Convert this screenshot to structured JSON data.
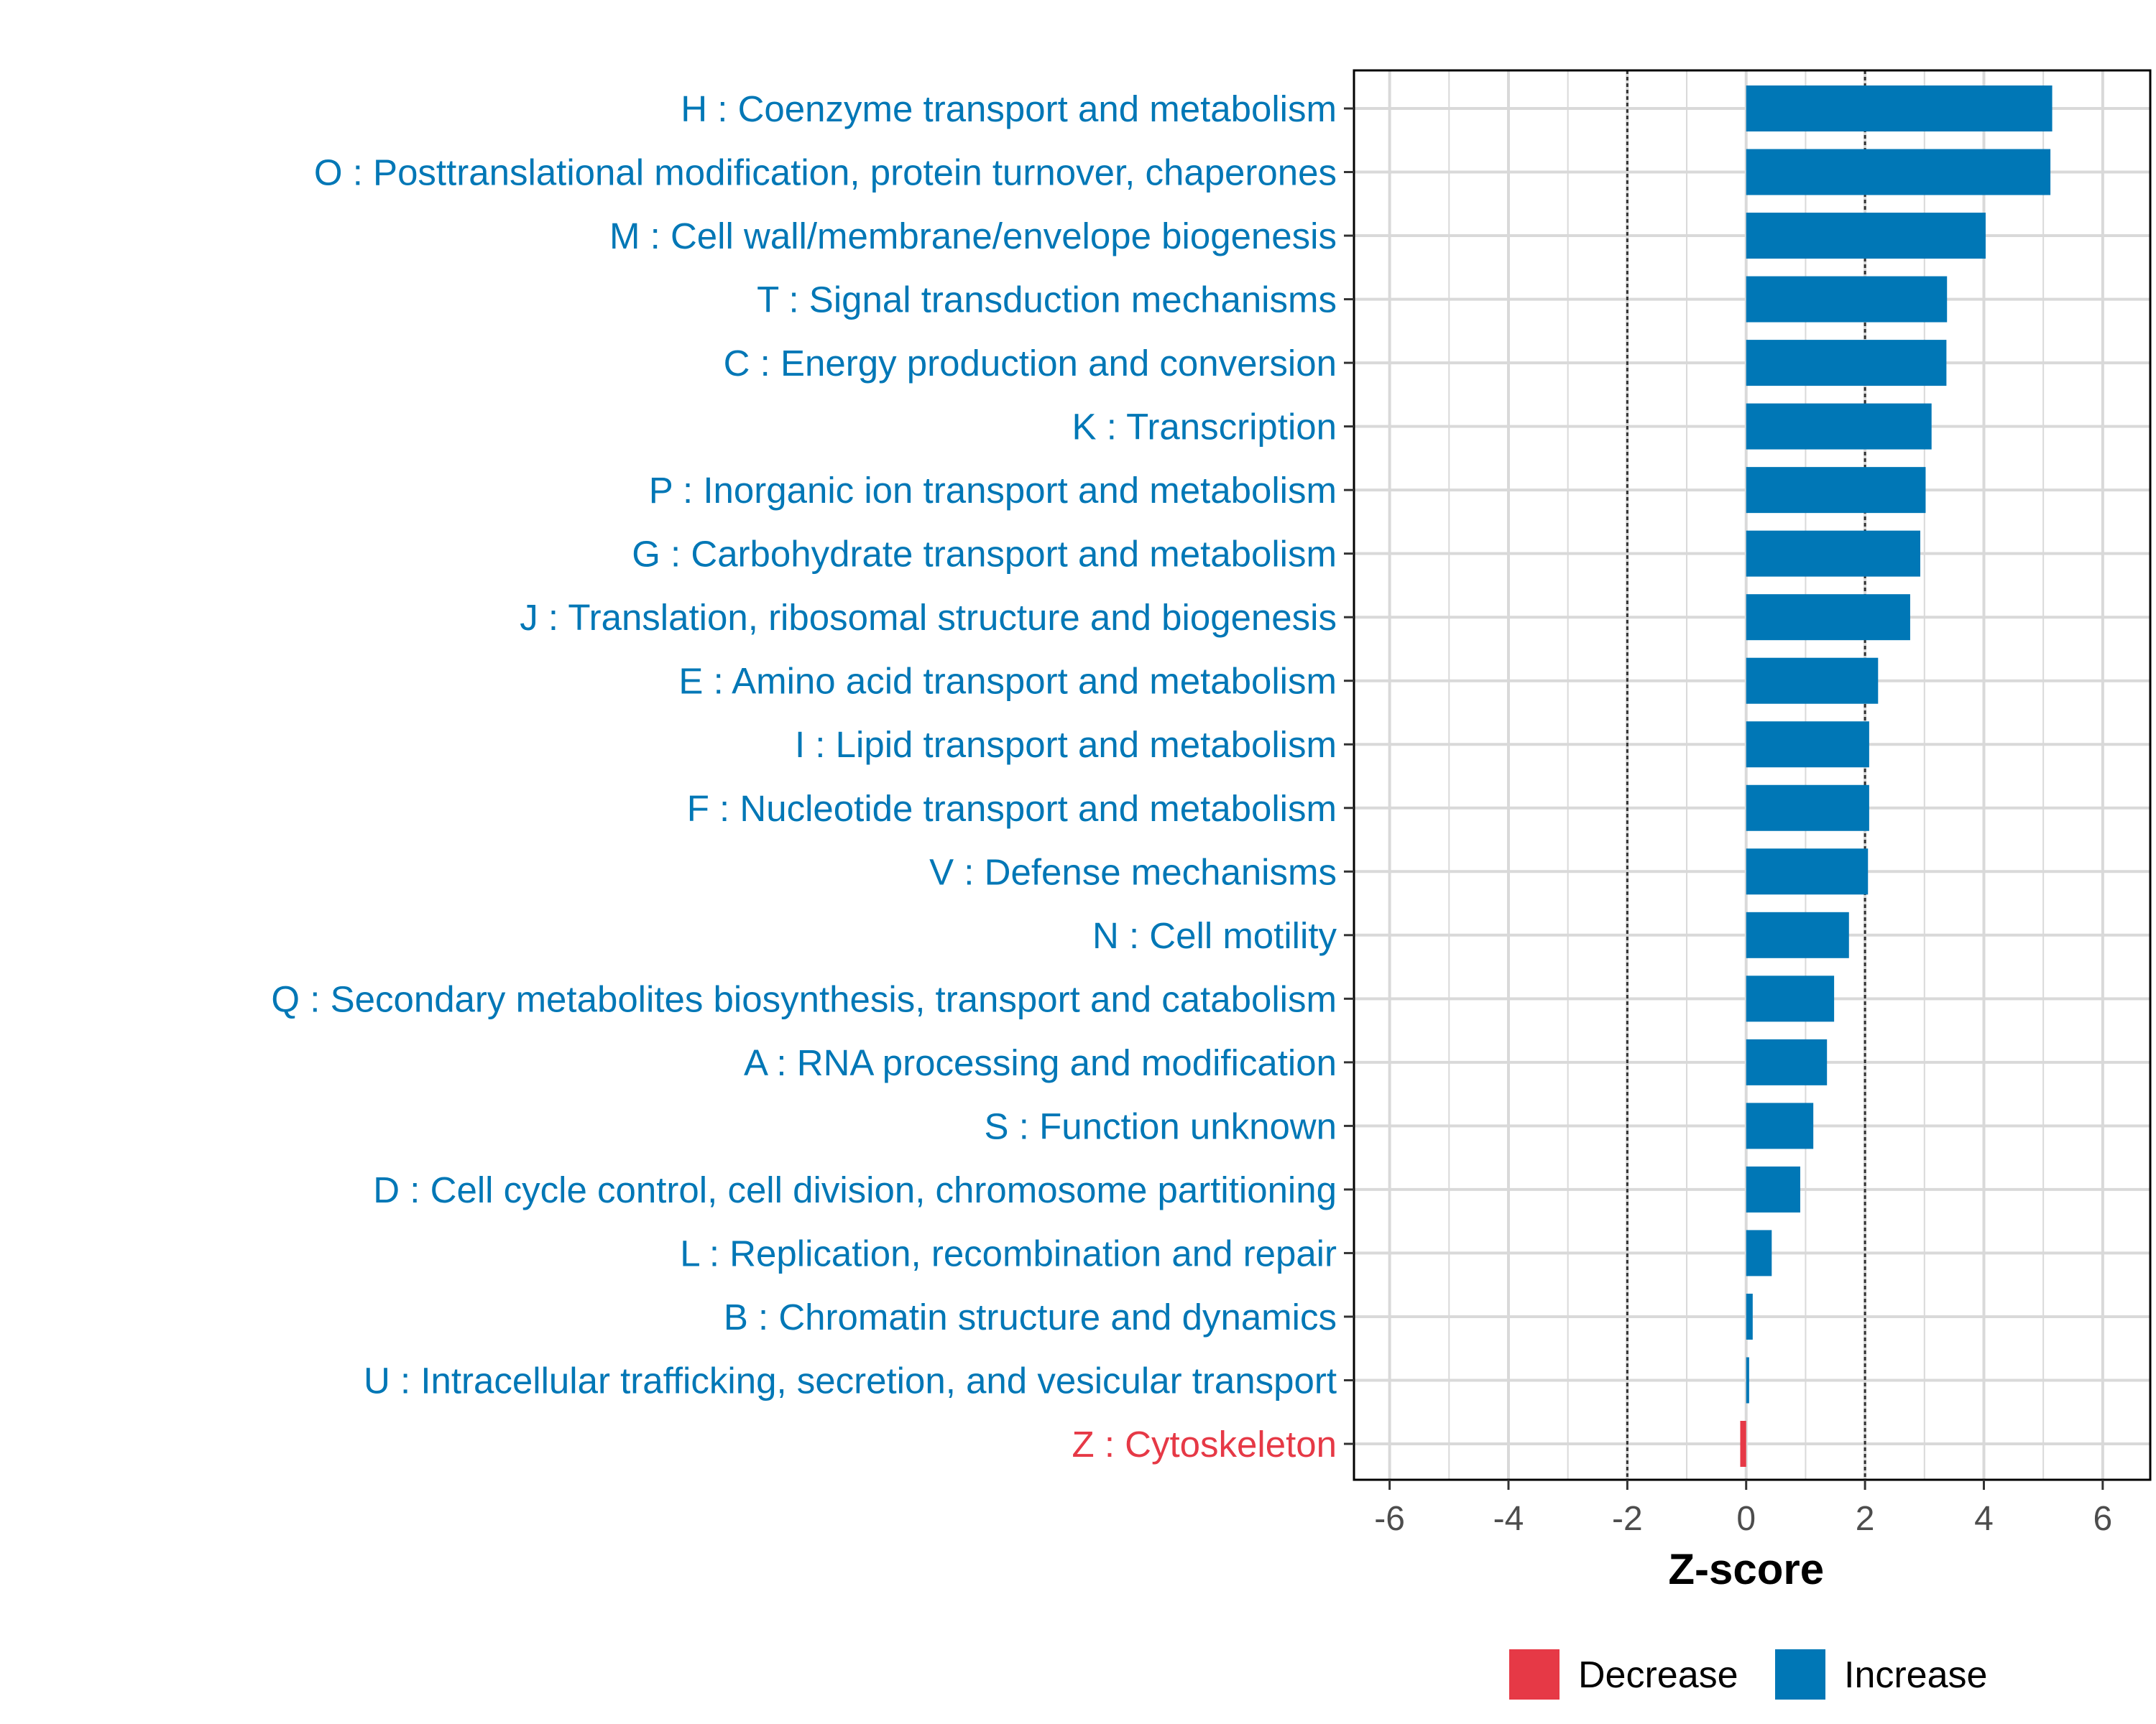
{
  "colors": {
    "increase": "#0077b6",
    "decrease": "#e63946",
    "grid": "#d9d9d9",
    "refline": "#333333",
    "tick_text": "#4d4d4d"
  },
  "chart_data": {
    "type": "bar",
    "orientation": "horizontal",
    "title": "",
    "xlabel": "Z-score",
    "ylabel": "",
    "xlim": [
      -6.6,
      6.8
    ],
    "xticks": [
      -6,
      -4,
      -2,
      0,
      2,
      4,
      6
    ],
    "xtick_labels": [
      "-6",
      "-4",
      "-2",
      "0",
      "2",
      "4",
      "6"
    ],
    "reference_lines": [
      -2,
      2
    ],
    "grid": true,
    "legend_position": "bottom",
    "legend": [
      {
        "label": "Decrease",
        "color_key": "decrease"
      },
      {
        "label": "Increase",
        "color_key": "increase"
      }
    ],
    "categories": [
      "H : Coenzyme transport and metabolism",
      "O : Posttranslational modification, protein turnover, chaperones",
      "M : Cell wall/membrane/envelope biogenesis",
      "T : Signal transduction mechanisms",
      "C : Energy production and conversion",
      "K : Transcription",
      "P : Inorganic ion transport and metabolism",
      "G : Carbohydrate transport and metabolism",
      "J : Translation, ribosomal structure and biogenesis",
      "E : Amino acid transport and metabolism",
      "I : Lipid transport and metabolism",
      "F : Nucleotide transport and metabolism",
      "V : Defense mechanisms",
      "N : Cell motility",
      "Q : Secondary metabolites biosynthesis, transport and catabolism",
      "A : RNA processing and modification",
      "S : Function unknown",
      "D : Cell cycle control, cell division, chromosome partitioning",
      "L : Replication, recombination and repair",
      "B : Chromatin structure and dynamics",
      "U : Intracellular trafficking, secretion, and vesicular transport",
      "Z : Cytoskeleton"
    ],
    "values": [
      5.15,
      5.12,
      4.03,
      3.38,
      3.37,
      3.12,
      3.02,
      2.93,
      2.76,
      2.22,
      2.07,
      2.07,
      2.05,
      1.73,
      1.48,
      1.36,
      1.13,
      0.91,
      0.43,
      0.11,
      0.05,
      -0.1
    ],
    "direction": [
      "increase",
      "increase",
      "increase",
      "increase",
      "increase",
      "increase",
      "increase",
      "increase",
      "increase",
      "increase",
      "increase",
      "increase",
      "increase",
      "increase",
      "increase",
      "increase",
      "increase",
      "increase",
      "increase",
      "increase",
      "increase",
      "decrease"
    ]
  }
}
